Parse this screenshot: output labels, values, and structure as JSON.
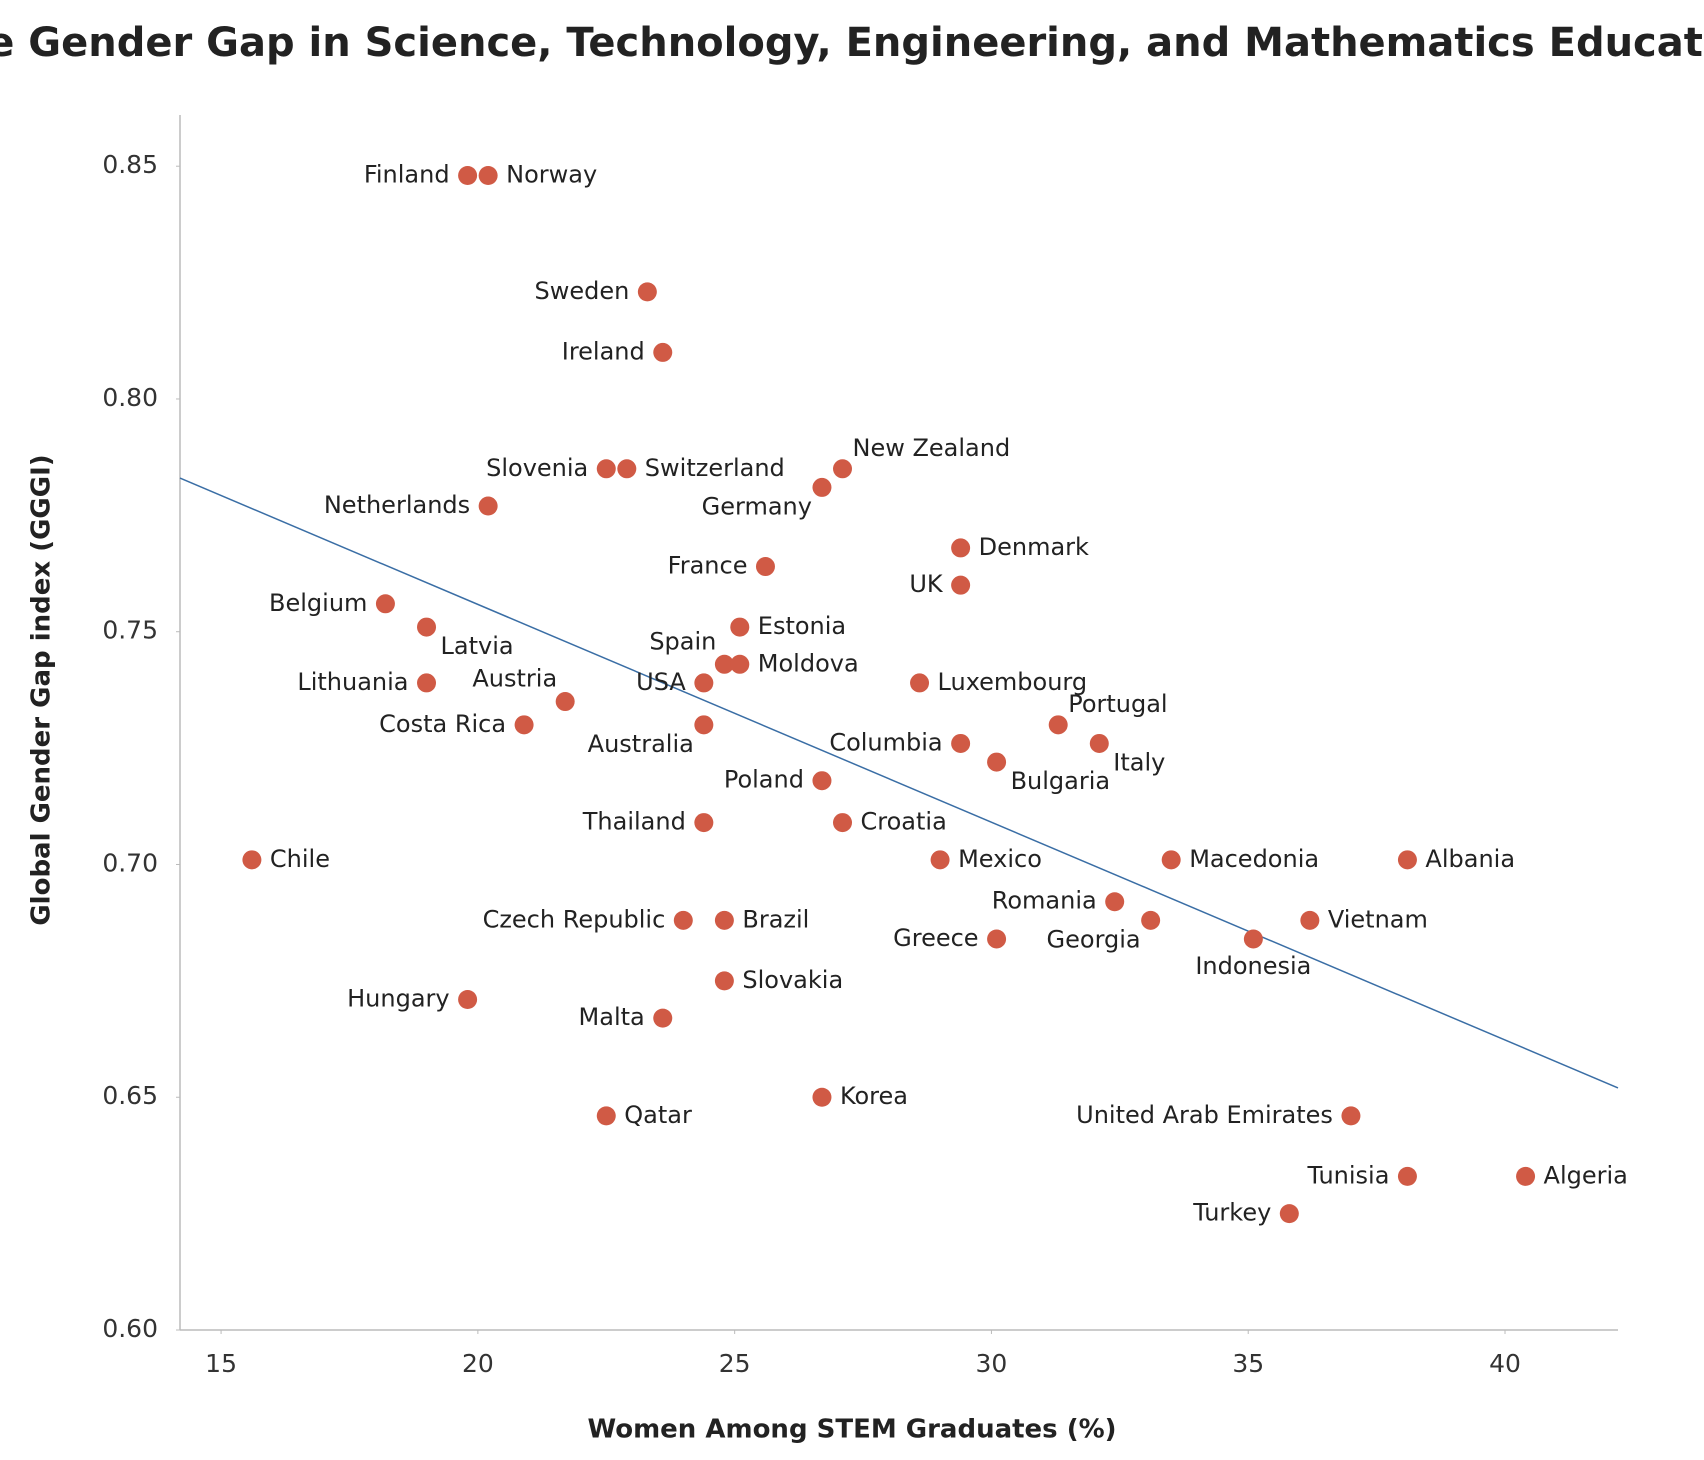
{
  "chart_data": {
    "type": "scatter",
    "title": "The Gender Gap in Science, Technology, Engineering, and Mathematics Education",
    "x_label": "Women Among STEM Graduates (%)",
    "y_label": "Global Gender Gap index (GGGI)",
    "labels": [
      "Finland",
      "Norway",
      "Sweden",
      "Ireland",
      "Slovenia",
      "Switzerland",
      "New Zealand",
      "Germany",
      "Netherlands",
      "France",
      "Denmark",
      "UK",
      "Belgium",
      "Latvia",
      "Estonia",
      "Spain",
      "Moldova",
      "Lithuania",
      "USA",
      "Luxembourg",
      "Austria",
      "Costa Rica",
      "Australia",
      "Portugal",
      "Columbia",
      "Italy",
      "Bulgaria",
      "Poland",
      "Thailand",
      "Croatia",
      "Chile",
      "Mexico",
      "Macedonia",
      "Albania",
      "Romania",
      "Czech Republic",
      "Brazil",
      "Georgia",
      "Vietnam",
      "Greece",
      "Indonesia",
      "Slovakia",
      "Hungary",
      "Malta",
      "Korea",
      "Qatar",
      "United Arab Emirates",
      "Tunisia",
      "Algeria",
      "Turkey"
    ],
    "x": [
      19.8,
      20.2,
      23.3,
      23.6,
      22.5,
      22.9,
      27.1,
      26.7,
      20.2,
      25.6,
      29.4,
      29.4,
      18.2,
      19.0,
      25.1,
      24.8,
      25.1,
      19.0,
      24.4,
      28.6,
      21.7,
      20.9,
      24.4,
      31.3,
      29.4,
      32.1,
      30.1,
      26.7,
      24.4,
      27.1,
      15.6,
      29.0,
      33.5,
      38.1,
      32.4,
      24.0,
      24.8,
      33.1,
      36.2,
      30.1,
      35.1,
      24.8,
      19.8,
      23.6,
      26.7,
      22.5,
      37.0,
      38.1,
      40.4,
      35.8
    ],
    "values": [
      0.848,
      0.848,
      0.823,
      0.81,
      0.785,
      0.785,
      0.785,
      0.781,
      0.777,
      0.764,
      0.768,
      0.76,
      0.756,
      0.751,
      0.751,
      0.743,
      0.743,
      0.739,
      0.739,
      0.739,
      0.735,
      0.73,
      0.73,
      0.73,
      0.726,
      0.726,
      0.722,
      0.718,
      0.709,
      0.709,
      0.701,
      0.701,
      0.701,
      0.701,
      0.692,
      0.688,
      0.688,
      0.688,
      0.688,
      0.684,
      0.684,
      0.675,
      0.671,
      0.667,
      0.65,
      0.646,
      0.646,
      0.633,
      0.633,
      0.625
    ],
    "color": "#d05a45",
    "trendline": {
      "x": [
        14.2,
        42.2
      ],
      "y": [
        0.783,
        0.652
      ],
      "color": "#3a6ea5"
    },
    "xlim": [
      14.2,
      42.2
    ],
    "xticks": [
      15,
      20,
      25,
      30,
      35,
      40
    ],
    "ylim": [
      0.6,
      0.861
    ],
    "yticks": [
      {
        "value": 0.6,
        "label": "0.60"
      },
      0.65,
      {
        "value": 0.8,
        "label": "0.80"
      },
      0.75,
      {
        "value": 0.7,
        "label": "0.70"
      },
      0.85
    ]
  }
}
